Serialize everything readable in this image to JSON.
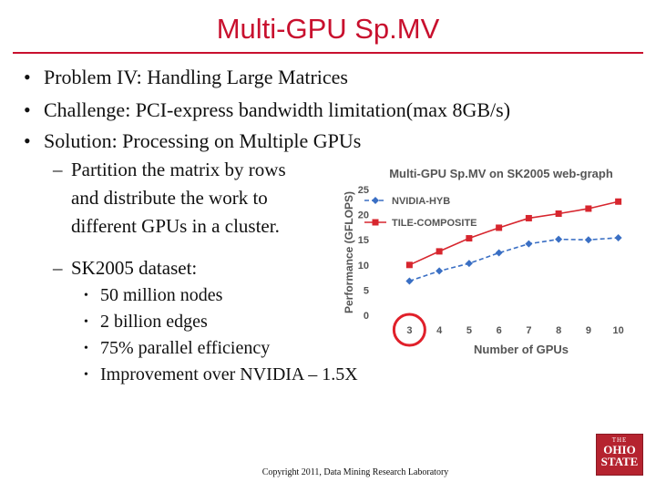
{
  "slide": {
    "title": "Multi-GPU Sp.MV",
    "bullets": [
      "Problem IV: Handling Large Matrices",
      "Challenge: PCI-express bandwidth limitation(max 8GB/s)",
      "Solution: Processing on Multiple GPUs"
    ],
    "sub_bullets": {
      "partition_lines": [
        "Partition the matrix by rows",
        "and distribute the work to",
        "different GPUs in a cluster."
      ],
      "dataset": "SK2005 dataset:"
    },
    "details": [
      "50 million nodes",
      "2 billion edges",
      "75% parallel efficiency",
      "Improvement over NVIDIA – 1.5X"
    ],
    "bullet_char": "•",
    "dash_char": "–",
    "footer": "Copyright 2011, Data Mining Research Laboratory",
    "logo": {
      "line1": "THE",
      "line2": "OHIO",
      "line3": "STATE"
    }
  },
  "chart_data": {
    "type": "line",
    "title": "Multi-GPU Sp.MV on SK2005 web-graph",
    "xlabel": "Number of GPUs",
    "ylabel": "Performance (GFLOPS)",
    "x": [
      3,
      4,
      5,
      6,
      7,
      8,
      9,
      10
    ],
    "ylim": [
      0,
      25
    ],
    "yticks": [
      0,
      5,
      10,
      15,
      20,
      25
    ],
    "legend_position": "top-left",
    "highlight_x": 3,
    "series": [
      {
        "name": "NVIDIA-HYB",
        "values": [
          6.8,
          8.8,
          10.3,
          12.4,
          14.2,
          15.1,
          15.0,
          15.4
        ],
        "color": "#3a6fc4",
        "marker": "diamond",
        "dash": true
      },
      {
        "name": "TILE-COMPOSITE",
        "values": [
          10.0,
          12.7,
          15.3,
          17.4,
          19.3,
          20.2,
          21.2,
          22.6
        ],
        "color": "#d7262e",
        "marker": "square",
        "dash": false
      }
    ],
    "highlight_color": "#e0202a"
  }
}
